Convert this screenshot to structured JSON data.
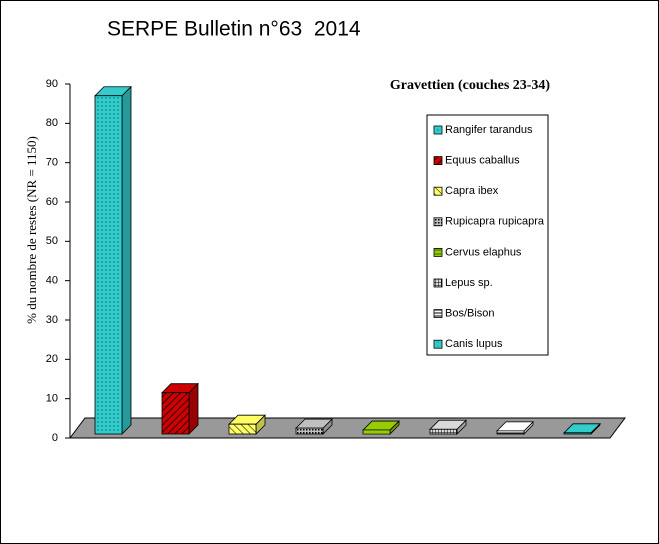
{
  "header": "SERPE Bulletin n°63  2014",
  "chart_data": {
    "type": "bar3d",
    "title": "Gravettien (couches 23-34)",
    "y_label": "% du nombre de restes (NR = 1150)",
    "ylim": [
      0,
      90
    ],
    "yticks": [
      0,
      10,
      20,
      30,
      40,
      50,
      60,
      70,
      80,
      90
    ],
    "series": [
      {
        "name": "Rangifer tarandus",
        "color": "#33cccc",
        "values": [
          86
        ]
      },
      {
        "name": "Equus caballus",
        "color": "#cc0000",
        "values": [
          10.5
        ]
      },
      {
        "name": "Capra ibex",
        "color": "#ffff66",
        "values": [
          2.5
        ]
      },
      {
        "name": "Rupicapra rupicapra",
        "color": "#c0c0c0",
        "values": [
          1.5
        ]
      },
      {
        "name": "Cervus elaphus",
        "color": "#99cc00",
        "values": [
          1
        ]
      },
      {
        "name": "Lepus sp.",
        "color": "#d9d9d9",
        "values": [
          1.2
        ]
      },
      {
        "name": "Bos/Bison",
        "color": "#ffffff",
        "values": [
          0.8
        ]
      },
      {
        "name": "Canis lupus",
        "color": "#33cccc",
        "values": [
          0.3
        ]
      }
    ]
  }
}
